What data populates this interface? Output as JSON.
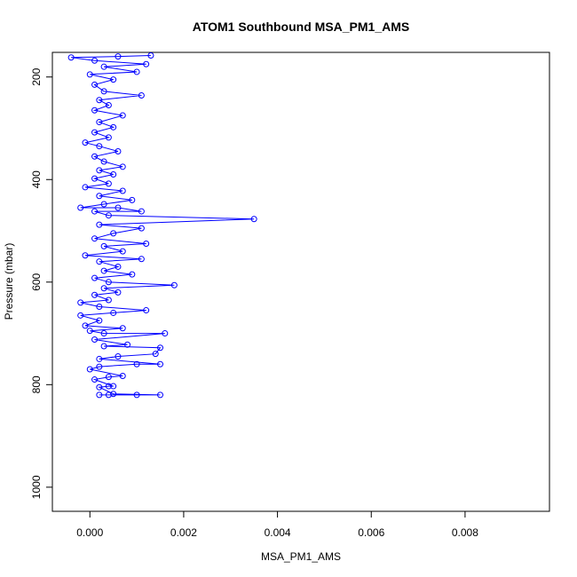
{
  "chart_data": {
    "type": "line",
    "title": "ATOM1 Southbound MSA_PM1_AMS",
    "xlabel": "MSA_PM1_AMS",
    "ylabel": "Pressure (mbar)",
    "xlim": [
      -0.0008,
      0.0098
    ],
    "ylim": [
      1047,
      152
    ],
    "y_reversed": true,
    "x_ticks": [
      0.0,
      0.002,
      0.004,
      0.006,
      0.008
    ],
    "x_tick_labels": [
      "0.000",
      "0.002",
      "0.004",
      "0.006",
      "0.008"
    ],
    "y_ticks": [
      200,
      400,
      600,
      800,
      1000
    ],
    "y_tick_labels": [
      "200",
      "400",
      "600",
      "800",
      "1000"
    ],
    "grid": false,
    "legend": "none",
    "series_color": "#0000ff",
    "marker": "open-circle",
    "series": [
      {
        "points": [
          {
            "x": 0.0002,
            "y": 820
          },
          {
            "x": 0.0004,
            "y": 820
          },
          {
            "x": 0.001,
            "y": 820
          },
          {
            "x": 0.0015,
            "y": 820
          },
          {
            "x": 0.0005,
            "y": 818
          },
          {
            "x": 0.0002,
            "y": 805
          },
          {
            "x": 0.0004,
            "y": 803
          },
          {
            "x": 0.0005,
            "y": 803
          },
          {
            "x": 0.0001,
            "y": 790
          },
          {
            "x": 0.0004,
            "y": 785
          },
          {
            "x": 0.0007,
            "y": 783
          },
          {
            "x": 0.0,
            "y": 770
          },
          {
            "x": 0.0002,
            "y": 765
          },
          {
            "x": 0.001,
            "y": 760
          },
          {
            "x": 0.0015,
            "y": 760
          },
          {
            "x": 0.0002,
            "y": 750
          },
          {
            "x": 0.0006,
            "y": 745
          },
          {
            "x": 0.0014,
            "y": 740
          },
          {
            "x": 0.0015,
            "y": 728
          },
          {
            "x": 0.0003,
            "y": 725
          },
          {
            "x": 0.0008,
            "y": 722
          },
          {
            "x": 0.0001,
            "y": 712
          },
          {
            "x": 0.0016,
            "y": 700
          },
          {
            "x": 0.0003,
            "y": 700
          },
          {
            "x": 0.0,
            "y": 695
          },
          {
            "x": 0.0007,
            "y": 690
          },
          {
            "x": -0.0001,
            "y": 685
          },
          {
            "x": 0.0002,
            "y": 675
          },
          {
            "x": -0.0002,
            "y": 665
          },
          {
            "x": 0.0005,
            "y": 660
          },
          {
            "x": 0.0012,
            "y": 655
          },
          {
            "x": 0.0002,
            "y": 648
          },
          {
            "x": -0.0002,
            "y": 640
          },
          {
            "x": 0.0004,
            "y": 635
          },
          {
            "x": 0.0001,
            "y": 625
          },
          {
            "x": 0.0006,
            "y": 620
          },
          {
            "x": 0.0003,
            "y": 612
          },
          {
            "x": 0.0018,
            "y": 606
          },
          {
            "x": 0.0004,
            "y": 600
          },
          {
            "x": 0.0001,
            "y": 592
          },
          {
            "x": 0.0009,
            "y": 585
          },
          {
            "x": 0.0003,
            "y": 578
          },
          {
            "x": 0.0006,
            "y": 570
          },
          {
            "x": 0.0002,
            "y": 560
          },
          {
            "x": 0.0011,
            "y": 555
          },
          {
            "x": -0.0001,
            "y": 548
          },
          {
            "x": 0.0007,
            "y": 540
          },
          {
            "x": 0.0003,
            "y": 530
          },
          {
            "x": 0.0012,
            "y": 525
          },
          {
            "x": 0.0001,
            "y": 515
          },
          {
            "x": 0.0005,
            "y": 505
          },
          {
            "x": 0.0011,
            "y": 495
          },
          {
            "x": 0.0002,
            "y": 488
          },
          {
            "x": 0.0035,
            "y": 477
          },
          {
            "x": 0.0004,
            "y": 470
          },
          {
            "x": 0.0001,
            "y": 462
          },
          {
            "x": 0.0011,
            "y": 462
          },
          {
            "x": 0.0006,
            "y": 455
          },
          {
            "x": -0.0002,
            "y": 455
          },
          {
            "x": 0.0003,
            "y": 448
          },
          {
            "x": 0.0009,
            "y": 440
          },
          {
            "x": 0.0002,
            "y": 432
          },
          {
            "x": 0.0007,
            "y": 422
          },
          {
            "x": -0.0001,
            "y": 415
          },
          {
            "x": 0.0004,
            "y": 408
          },
          {
            "x": 0.0001,
            "y": 398
          },
          {
            "x": 0.0005,
            "y": 390
          },
          {
            "x": 0.0002,
            "y": 382
          },
          {
            "x": 0.0007,
            "y": 375
          },
          {
            "x": 0.0003,
            "y": 365
          },
          {
            "x": 0.0001,
            "y": 355
          },
          {
            "x": 0.0006,
            "y": 345
          },
          {
            "x": 0.0002,
            "y": 335
          },
          {
            "x": -0.0001,
            "y": 328
          },
          {
            "x": 0.0004,
            "y": 318
          },
          {
            "x": 0.0001,
            "y": 308
          },
          {
            "x": 0.0005,
            "y": 298
          },
          {
            "x": 0.0002,
            "y": 288
          },
          {
            "x": 0.0007,
            "y": 275
          },
          {
            "x": 0.0001,
            "y": 265
          },
          {
            "x": 0.0004,
            "y": 255
          },
          {
            "x": 0.0002,
            "y": 245
          },
          {
            "x": 0.0011,
            "y": 236
          },
          {
            "x": 0.0003,
            "y": 228
          },
          {
            "x": 0.0001,
            "y": 215
          },
          {
            "x": 0.0005,
            "y": 205
          },
          {
            "x": 0.0,
            "y": 195
          },
          {
            "x": 0.001,
            "y": 190
          },
          {
            "x": 0.0003,
            "y": 180
          },
          {
            "x": 0.0012,
            "y": 175
          },
          {
            "x": 0.0001,
            "y": 168
          },
          {
            "x": -0.0004,
            "y": 162
          },
          {
            "x": 0.0006,
            "y": 160
          },
          {
            "x": 0.0013,
            "y": 158
          }
        ]
      }
    ]
  }
}
